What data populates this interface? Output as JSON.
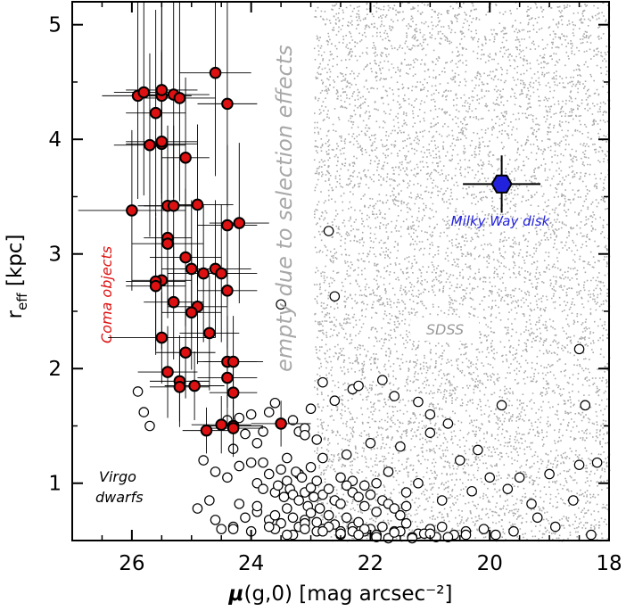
{
  "chart_data": {
    "type": "scatter",
    "xlabel_symbol": "μ",
    "xlabel_rest": "(g,0)  [mag arcsec⁻²]",
    "ylabel_main": "r",
    "ylabel_sub": "eff",
    "ylabel_rest": " [kpc]",
    "xlim": [
      27,
      18
    ],
    "ylim": [
      0.5,
      5.2
    ],
    "xticks": [
      26,
      24,
      22,
      20,
      18
    ],
    "yticks": [
      1,
      2,
      3,
      4,
      5
    ],
    "grid": false,
    "colors": {
      "coma": "#dd1111",
      "milky_way": "#2222dd",
      "sdss": "#aaaaaa",
      "virgo": "#000000",
      "annotation_gray": "#a8a8a8"
    },
    "annotations": {
      "coma_label": "Coma objects",
      "virgo_label_1": "Virgo",
      "virgo_label_2": "dwarfs",
      "milky_way_label": "Milky Way disk",
      "sdss_label": "SDSS",
      "empty_label": "empty due to selection effects"
    },
    "series": [
      {
        "name": "Coma objects",
        "marker": "filled-red-circle",
        "x": [
          25.9,
          25.8,
          25.6,
          25.5,
          25.5,
          25.3,
          25.2,
          25.1,
          24.6,
          24.4,
          25.7,
          25.5,
          25.5,
          25.4,
          25.3,
          26.0,
          25.4,
          24.9,
          24.4,
          24.2,
          25.4,
          25.1,
          25.5,
          25.6,
          25.6,
          25.0,
          24.6,
          24.5,
          24.8,
          25.3,
          24.9,
          24.4,
          25.0,
          24.7,
          25.5,
          24.4,
          25.1,
          24.4,
          24.3,
          25.4,
          25.2,
          24.3,
          25.2,
          24.95,
          24.3,
          24.5,
          24.3,
          23.5,
          24.75
        ],
        "y": [
          4.38,
          4.41,
          4.23,
          4.38,
          4.43,
          4.39,
          4.36,
          3.84,
          4.58,
          4.31,
          3.95,
          3.96,
          3.98,
          3.42,
          3.42,
          3.38,
          3.14,
          3.43,
          3.25,
          3.27,
          3.09,
          2.97,
          2.77,
          2.76,
          2.72,
          2.87,
          2.87,
          2.83,
          2.83,
          2.58,
          2.54,
          2.68,
          2.49,
          2.31,
          2.27,
          2.06,
          2.14,
          1.92,
          2.06,
          1.97,
          1.89,
          1.79,
          1.84,
          1.85,
          1.5,
          1.51,
          1.48,
          1.52,
          1.46
        ],
        "xerr": [
          0.6,
          0.5,
          0.5,
          0.5,
          0.6,
          0.6,
          0.6,
          0.4,
          0.6,
          0.5,
          0.6,
          0.6,
          0.6,
          0.5,
          0.5,
          0.9,
          0.4,
          0.6,
          0.5,
          0.5,
          0.6,
          0.6,
          0.5,
          0.5,
          0.5,
          0.5,
          0.6,
          0.6,
          0.6,
          0.5,
          0.5,
          0.5,
          0.5,
          0.5,
          0.9,
          0.5,
          0.5,
          0.5,
          0.5,
          0.5,
          0.5,
          0.4,
          0.5,
          0.5,
          0.5,
          0.5,
          0.5,
          0.5,
          0.4
        ],
        "yerr": [
          0.9,
          0.9,
          0.9,
          0.9,
          0.9,
          0.9,
          0.9,
          0.7,
          0.9,
          0.9,
          0.8,
          0.8,
          0.8,
          0.7,
          0.7,
          0.7,
          0.7,
          0.7,
          0.7,
          0.7,
          0.6,
          0.6,
          0.6,
          0.6,
          0.6,
          0.6,
          0.6,
          0.6,
          0.6,
          0.5,
          0.5,
          0.5,
          0.5,
          0.5,
          0.4,
          0.4,
          0.4,
          0.4,
          0.4,
          0.4,
          0.4,
          0.3,
          0.3,
          0.3,
          0.25,
          0.25,
          0.25,
          0.2,
          0.2
        ]
      },
      {
        "name": "Milky Way disk",
        "marker": "blue-hexagon",
        "x": [
          19.8
        ],
        "y": [
          3.61
        ],
        "xerr": [
          0.65
        ],
        "yerr": [
          0.25
        ]
      },
      {
        "name": "Virgo dwarfs",
        "marker": "open-black-circle",
        "x": [
          22.7,
          22.6,
          23.5,
          25.9,
          25.8,
          25.7,
          24.4,
          24.2,
          24.0,
          23.8,
          23.7,
          23.6,
          23.3,
          23.2,
          23.1,
          23.0,
          22.8,
          22.6,
          22.3,
          22.2,
          21.8,
          21.6,
          21.2,
          21.0,
          20.7,
          20.2,
          19.8,
          18.5,
          18.4,
          24.1,
          24.3,
          23.9,
          23.4,
          23.1,
          22.9,
          22.4,
          22.0,
          21.5,
          21.0,
          20.5,
          20.0,
          19.5,
          19.0,
          18.5,
          18.2,
          23.8,
          23.5,
          23.2,
          23.0,
          22.8,
          22.5,
          22.3,
          22.1,
          21.9,
          21.7,
          21.4,
          21.2,
          20.8,
          20.3,
          19.7,
          19.3,
          18.6,
          24.8,
          24.6,
          24.4,
          24.2,
          24.0,
          23.9,
          23.8,
          23.7,
          23.6,
          23.55,
          23.45,
          23.4,
          23.35,
          23.3,
          23.25,
          23.2,
          23.15,
          23.1,
          23.05,
          23.0,
          22.95,
          22.9,
          22.85,
          22.8,
          22.7,
          22.6,
          22.5,
          22.4,
          22.3,
          22.2,
          22.1,
          22.0,
          21.9,
          21.8,
          21.7,
          21.6,
          21.5,
          21.4,
          24.5,
          24.3,
          24.1,
          23.9,
          23.7,
          23.6,
          23.5,
          23.4,
          23.3,
          23.2,
          23.1,
          23.0,
          22.9,
          22.8,
          22.7,
          22.6,
          22.5,
          22.4,
          22.3,
          22.2,
          22.1,
          22.0,
          21.9,
          21.8,
          21.6,
          21.4,
          21.2,
          21.0,
          20.8,
          20.6,
          20.4,
          20.1,
          19.9,
          19.6,
          19.2,
          18.9,
          18.3,
          24.7,
          24.2,
          23.9,
          23.6,
          23.3,
          23.1,
          22.9,
          22.7,
          22.5,
          22.3,
          22.1,
          21.9,
          21.7,
          21.5,
          21.3,
          21.1,
          20.9,
          24.9,
          24.6,
          24.3,
          24.0,
          23.7,
          23.4,
          23.1,
          22.8,
          22.5,
          22.2,
          21.9,
          21.6,
          21.3,
          21.0,
          20.7,
          20.4
        ],
        "y": [
          3.2,
          2.63,
          2.56,
          1.8,
          1.62,
          1.5,
          1.55,
          1.57,
          1.6,
          1.45,
          1.62,
          1.7,
          1.55,
          1.45,
          1.48,
          1.65,
          1.88,
          1.72,
          1.82,
          1.85,
          1.9,
          1.76,
          1.71,
          1.6,
          1.52,
          1.29,
          1.68,
          2.17,
          1.68,
          1.43,
          1.3,
          1.35,
          1.22,
          1.42,
          1.38,
          1.25,
          1.35,
          1.32,
          1.44,
          1.2,
          1.05,
          1.05,
          1.08,
          1.16,
          1.18,
          1.18,
          1.12,
          1.08,
          1.14,
          1.22,
          1.05,
          1.02,
          0.98,
          1.0,
          1.1,
          0.92,
          1.0,
          0.85,
          0.93,
          0.95,
          0.82,
          0.85,
          1.2,
          1.1,
          1.05,
          1.15,
          1.18,
          1.0,
          0.95,
          1.08,
          0.92,
          0.98,
          0.88,
          1.02,
          0.95,
          0.9,
          1.1,
          0.85,
          1.05,
          0.92,
          0.8,
          0.96,
          0.88,
          1.02,
          0.78,
          0.9,
          0.95,
          0.85,
          0.82,
          0.98,
          0.92,
          0.88,
          0.8,
          0.9,
          0.75,
          0.85,
          0.82,
          0.78,
          0.72,
          0.8,
          0.6,
          0.62,
          0.7,
          0.75,
          0.68,
          0.72,
          0.65,
          0.78,
          0.7,
          0.62,
          0.68,
          0.74,
          0.66,
          0.6,
          0.72,
          0.64,
          0.58,
          0.7,
          0.62,
          0.66,
          0.58,
          0.6,
          0.55,
          0.62,
          0.58,
          0.65,
          0.56,
          0.6,
          0.62,
          0.55,
          0.58,
          0.6,
          0.55,
          0.58,
          0.7,
          0.62,
          0.55,
          0.85,
          0.82,
          0.8,
          0.6,
          0.55,
          0.65,
          0.58,
          0.62,
          0.55,
          0.58,
          0.6,
          0.55,
          0.52,
          0.58,
          0.53,
          0.56,
          0.53,
          0.78,
          0.68,
          0.6,
          0.58,
          0.62,
          0.55,
          0.6,
          0.58,
          0.56,
          0.55,
          0.53,
          0.57,
          0.52,
          0.56,
          0.53,
          0.55
        ]
      }
    ],
    "sdss_cloud": {
      "n": 14000,
      "seed": 7
    }
  }
}
